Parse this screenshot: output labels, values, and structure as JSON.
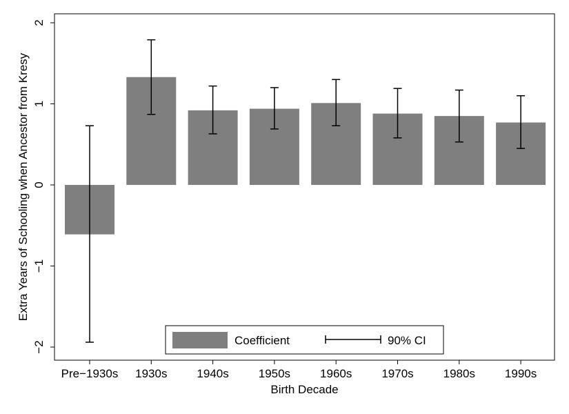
{
  "chart_data": {
    "type": "bar",
    "title": "",
    "xlabel": "Birth Decade",
    "ylabel": "Extra Years of Schooling when Ancestor from Kresy",
    "categories": [
      "Pre−1930s",
      "1930s",
      "1940s",
      "1950s",
      "1960s",
      "1970s",
      "1980s",
      "1990s"
    ],
    "series": [
      {
        "name": "Coefficient",
        "values": [
          -0.61,
          1.33,
          0.92,
          0.94,
          1.01,
          0.88,
          0.85,
          0.77
        ],
        "ci_low": [
          -1.94,
          0.87,
          0.63,
          0.69,
          0.73,
          0.58,
          0.53,
          0.45
        ],
        "ci_high": [
          0.73,
          1.79,
          1.22,
          1.2,
          1.3,
          1.19,
          1.17,
          1.1
        ]
      }
    ],
    "ylim": [
      -2,
      2
    ],
    "yticks": [
      -2,
      -1,
      0,
      1,
      2
    ],
    "ytick_labels": [
      "−2",
      "−1",
      "0",
      "1",
      "2"
    ],
    "grid": false,
    "legend": {
      "placement": "bottom-center",
      "entries": [
        "Coefficient",
        "90% CI"
      ]
    },
    "colors": {
      "bar": "#7f7f7f",
      "ci": "#000000",
      "frame": "#000000"
    }
  }
}
